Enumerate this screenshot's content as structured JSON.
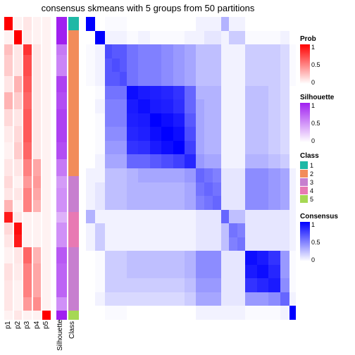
{
  "title": "consensus skmeans with 5 groups from 50 partitions",
  "colors": {
    "prob_low": "#ffffff",
    "prob_high": "#ff0000",
    "silh_low": "#ffffff",
    "silh_high": "#a020f0",
    "cons_low": "#ffffff",
    "cons_high": "#0000ff",
    "class": [
      "#1fb8a6",
      "#f28c5a",
      "#c77fcf",
      "#e879b3",
      "#a6d854"
    ]
  },
  "row_heights": [
    0.045,
    0.045,
    0.035,
    0.035,
    0.035,
    0.055,
    0.055,
    0.055,
    0.055,
    0.055,
    0.055,
    0.04,
    0.04,
    0.04,
    0.035,
    0.04,
    0.04,
    0.055,
    0.055,
    0.055,
    0.045,
    0.03
  ],
  "annot_cols": [
    {
      "name": "p1",
      "type": "prob",
      "vals": [
        1,
        0.05,
        0.25,
        0.2,
        0.2,
        0.1,
        0.3,
        0.15,
        0.08,
        0.05,
        0.1,
        0.15,
        0.1,
        0.3,
        0.9,
        0.15,
        0.1,
        0.05,
        0.12,
        0.1,
        0.1,
        0.05
      ]
    },
    {
      "name": "p2",
      "type": "prob",
      "vals": [
        0.05,
        1,
        0.1,
        0.1,
        0.1,
        0.3,
        0.2,
        0.1,
        0.15,
        0.2,
        0.1,
        0.05,
        0.1,
        0.05,
        0.1,
        0.95,
        0.9,
        0.1,
        0.08,
        0.05,
        0.05,
        0.1
      ]
    },
    {
      "name": "p3",
      "type": "prob",
      "vals": [
        0.1,
        0.08,
        0.8,
        0.7,
        0.7,
        0.65,
        0.6,
        0.65,
        0.65,
        0.6,
        0.5,
        0.4,
        0.5,
        0.5,
        0.05,
        0.05,
        0.05,
        0.6,
        0.5,
        0.5,
        0.4,
        0.05
      ]
    },
    {
      "name": "p4",
      "type": "prob",
      "vals": [
        0.05,
        0.05,
        0.1,
        0.1,
        0.1,
        0.1,
        0.1,
        0.1,
        0.1,
        0.1,
        0.35,
        0.4,
        0.35,
        0.3,
        0.05,
        0.05,
        0.05,
        0.3,
        0.35,
        0.35,
        0.45,
        0.05
      ]
    },
    {
      "name": "p5",
      "type": "prob",
      "vals": [
        0.05,
        0.05,
        0.05,
        0.05,
        0.05,
        0.05,
        0.05,
        0.05,
        0.05,
        0.05,
        0.05,
        0.05,
        0.05,
        0.05,
        0.05,
        0.05,
        0.05,
        0.05,
        0.05,
        0.05,
        0.05,
        1
      ]
    },
    {
      "name": "Silhouette",
      "type": "silh",
      "wide": true,
      "vals": [
        1,
        1,
        0.6,
        0.55,
        0.55,
        0.85,
        0.8,
        0.85,
        0.85,
        0.8,
        0.6,
        0.45,
        0.5,
        0.5,
        0.35,
        0.5,
        0.5,
        0.75,
        0.7,
        0.7,
        0.5,
        1
      ]
    },
    {
      "name": "Class",
      "type": "class",
      "wide": true,
      "vals": [
        0,
        1,
        1,
        1,
        1,
        1,
        1,
        1,
        1,
        1,
        1,
        2,
        2,
        2,
        3,
        3,
        3,
        2,
        2,
        2,
        2,
        4
      ]
    }
  ],
  "heatmap": [
    [
      1,
      0,
      0.02,
      0.02,
      0.02,
      0,
      0,
      0,
      0,
      0,
      0,
      0.05,
      0.05,
      0.05,
      0.3,
      0.05,
      0.05,
      0,
      0,
      0,
      0,
      0
    ],
    [
      0,
      1,
      0.05,
      0.05,
      0.05,
      0.02,
      0.05,
      0.02,
      0.02,
      0.02,
      0.05,
      0.05,
      0.1,
      0.1,
      0.05,
      0.2,
      0.2,
      0.02,
      0.02,
      0.02,
      0.05,
      0
    ],
    [
      0.02,
      0.05,
      0.7,
      0.65,
      0.65,
      0.55,
      0.5,
      0.5,
      0.45,
      0.4,
      0.35,
      0.25,
      0.25,
      0.25,
      0.05,
      0.05,
      0.05,
      0.2,
      0.2,
      0.2,
      0.15,
      0.02
    ],
    [
      0.02,
      0.05,
      0.65,
      0.7,
      0.65,
      0.55,
      0.5,
      0.5,
      0.45,
      0.4,
      0.35,
      0.25,
      0.25,
      0.25,
      0.05,
      0.05,
      0.05,
      0.2,
      0.2,
      0.2,
      0.15,
      0.02
    ],
    [
      0.02,
      0.05,
      0.65,
      0.65,
      0.7,
      0.55,
      0.5,
      0.5,
      0.45,
      0.4,
      0.35,
      0.25,
      0.25,
      0.25,
      0.05,
      0.05,
      0.05,
      0.2,
      0.2,
      0.2,
      0.15,
      0.02
    ],
    [
      0,
      0.02,
      0.55,
      0.55,
      0.55,
      0.95,
      0.9,
      0.88,
      0.85,
      0.8,
      0.6,
      0.3,
      0.3,
      0.3,
      0.05,
      0.05,
      0.05,
      0.25,
      0.25,
      0.2,
      0.15,
      0
    ],
    [
      0,
      0.05,
      0.5,
      0.5,
      0.5,
      0.9,
      0.95,
      0.9,
      0.88,
      0.82,
      0.6,
      0.35,
      0.3,
      0.3,
      0.05,
      0.05,
      0.05,
      0.25,
      0.25,
      0.2,
      0.15,
      0
    ],
    [
      0,
      0.02,
      0.5,
      0.5,
      0.5,
      0.88,
      0.9,
      1,
      0.95,
      0.9,
      0.65,
      0.35,
      0.3,
      0.3,
      0.05,
      0.05,
      0.05,
      0.25,
      0.25,
      0.2,
      0.15,
      0
    ],
    [
      0,
      0.02,
      0.45,
      0.45,
      0.45,
      0.85,
      0.88,
      0.95,
      1,
      0.95,
      0.7,
      0.35,
      0.3,
      0.3,
      0.05,
      0.05,
      0.05,
      0.25,
      0.25,
      0.2,
      0.15,
      0
    ],
    [
      0,
      0.02,
      0.4,
      0.4,
      0.4,
      0.8,
      0.82,
      0.9,
      0.95,
      1,
      0.75,
      0.35,
      0.3,
      0.3,
      0.05,
      0.05,
      0.05,
      0.25,
      0.25,
      0.2,
      0.15,
      0
    ],
    [
      0,
      0.05,
      0.35,
      0.35,
      0.35,
      0.6,
      0.6,
      0.65,
      0.7,
      0.75,
      0.85,
      0.4,
      0.35,
      0.35,
      0.05,
      0.05,
      0.05,
      0.3,
      0.3,
      0.25,
      0.2,
      0
    ],
    [
      0.05,
      0.05,
      0.25,
      0.25,
      0.25,
      0.3,
      0.35,
      0.35,
      0.35,
      0.35,
      0.4,
      0.6,
      0.55,
      0.5,
      0.1,
      0.1,
      0.1,
      0.45,
      0.45,
      0.4,
      0.35,
      0.05
    ],
    [
      0.05,
      0.1,
      0.25,
      0.25,
      0.25,
      0.3,
      0.3,
      0.3,
      0.3,
      0.3,
      0.35,
      0.55,
      0.6,
      0.55,
      0.1,
      0.1,
      0.1,
      0.45,
      0.45,
      0.4,
      0.35,
      0.05
    ],
    [
      0.05,
      0.1,
      0.25,
      0.25,
      0.25,
      0.3,
      0.3,
      0.3,
      0.3,
      0.3,
      0.35,
      0.5,
      0.55,
      0.6,
      0.1,
      0.1,
      0.1,
      0.45,
      0.45,
      0.4,
      0.35,
      0.05
    ],
    [
      0.3,
      0.05,
      0.05,
      0.05,
      0.05,
      0.05,
      0.05,
      0.05,
      0.05,
      0.05,
      0.05,
      0.1,
      0.1,
      0.1,
      0.6,
      0.25,
      0.25,
      0.1,
      0.1,
      0.1,
      0.1,
      0.05
    ],
    [
      0.05,
      0.2,
      0.05,
      0.05,
      0.05,
      0.05,
      0.05,
      0.05,
      0.05,
      0.05,
      0.05,
      0.1,
      0.1,
      0.1,
      0.25,
      0.55,
      0.5,
      0.1,
      0.1,
      0.1,
      0.1,
      0.05
    ],
    [
      0.05,
      0.2,
      0.05,
      0.05,
      0.05,
      0.05,
      0.05,
      0.05,
      0.05,
      0.05,
      0.05,
      0.1,
      0.1,
      0.1,
      0.25,
      0.5,
      0.55,
      0.1,
      0.1,
      0.1,
      0.1,
      0.05
    ],
    [
      0,
      0.02,
      0.2,
      0.2,
      0.2,
      0.25,
      0.25,
      0.25,
      0.25,
      0.25,
      0.3,
      0.45,
      0.45,
      0.45,
      0.1,
      0.1,
      0.1,
      0.95,
      0.9,
      0.8,
      0.4,
      0.02
    ],
    [
      0,
      0.02,
      0.2,
      0.2,
      0.2,
      0.25,
      0.25,
      0.25,
      0.25,
      0.25,
      0.3,
      0.45,
      0.45,
      0.45,
      0.1,
      0.1,
      0.1,
      0.9,
      0.95,
      0.85,
      0.4,
      0.02
    ],
    [
      0,
      0.02,
      0.2,
      0.2,
      0.2,
      0.2,
      0.2,
      0.2,
      0.2,
      0.2,
      0.25,
      0.4,
      0.4,
      0.4,
      0.1,
      0.1,
      0.1,
      0.8,
      0.85,
      0.9,
      0.45,
      0.02
    ],
    [
      0,
      0.05,
      0.15,
      0.15,
      0.15,
      0.15,
      0.15,
      0.15,
      0.15,
      0.15,
      0.2,
      0.35,
      0.35,
      0.35,
      0.1,
      0.1,
      0.1,
      0.4,
      0.4,
      0.45,
      0.6,
      0.05
    ],
    [
      0,
      0,
      0.02,
      0.02,
      0.02,
      0,
      0,
      0,
      0,
      0,
      0,
      0.05,
      0.05,
      0.05,
      0.05,
      0.05,
      0.05,
      0.02,
      0.02,
      0.02,
      0.05,
      1
    ]
  ],
  "legends": {
    "prob": {
      "title": "Prob",
      "ticks": [
        "1",
        "0.5",
        "0"
      ]
    },
    "silh": {
      "title": "Silhouette",
      "ticks": [
        "1",
        "0.5",
        "0"
      ]
    },
    "class": {
      "title": "Class",
      "labels": [
        "1",
        "2",
        "3",
        "4",
        "5"
      ]
    },
    "cons": {
      "title": "Consensus",
      "ticks": [
        "1",
        "0.5",
        "0"
      ]
    }
  }
}
